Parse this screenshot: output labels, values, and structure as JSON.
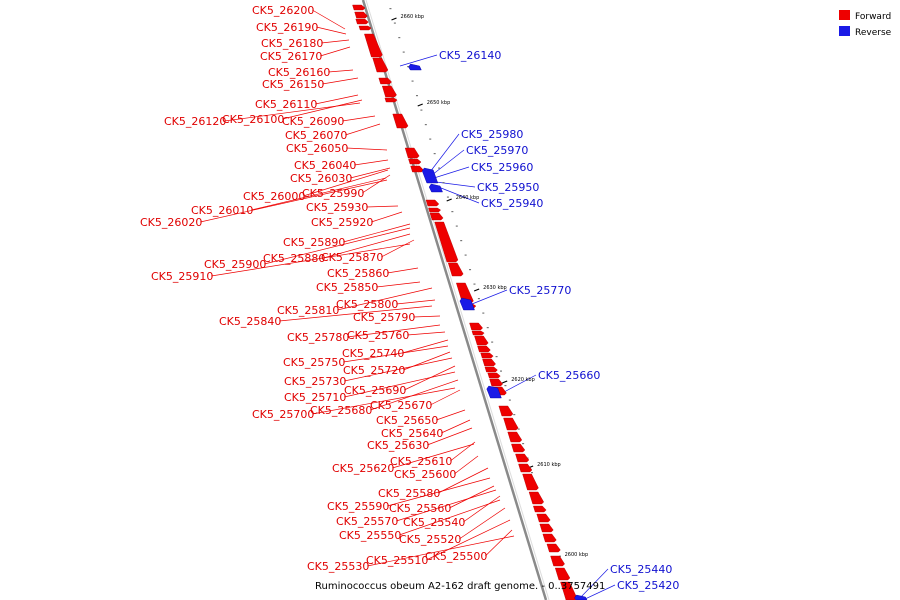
{
  "caption": "Ruminococcus obeum A2-162 draft genome. - 0..3757491",
  "colors": {
    "forward": "#ee0000",
    "reverse": "#1a1ae6",
    "axis": "#8a8a8a"
  },
  "legend": [
    {
      "name": "Forward",
      "color": "#ee0000"
    },
    {
      "name": "Reverse",
      "color": "#1a1ae6"
    }
  ],
  "ticks": [
    "2660 kbp",
    "2650 kbp",
    "2640 kbp",
    "2630 kbp",
    "2620 kbp",
    "2610 kbp",
    "2600 kbp"
  ],
  "genes_forward": [
    "CK5_26200",
    "CK5_26190",
    "CK5_26180",
    "CK5_26170",
    "CK5_26160",
    "CK5_26150",
    "CK5_26110",
    "CK5_26120",
    "CK5_26100",
    "CK5_26090",
    "CK5_26070",
    "CK5_26050",
    "CK5_26040",
    "CK5_26030",
    "CK5_26000",
    "CK5_25990",
    "CK5_26010",
    "CK5_25930",
    "CK5_26020",
    "CK5_25920",
    "CK5_25890",
    "CK5_25900",
    "CK5_25880",
    "CK5_25870",
    "CK5_25910",
    "CK5_25860",
    "CK5_25850",
    "CK5_25810",
    "CK5_25800",
    "CK5_25840",
    "CK5_25790",
    "CK5_25780",
    "CK5_25760",
    "CK5_25740",
    "CK5_25750",
    "CK5_25720",
    "CK5_25730",
    "CK5_25690",
    "CK5_25710",
    "CK5_25680",
    "CK5_25670",
    "CK5_25700",
    "CK5_25650",
    "CK5_25640",
    "CK5_25630",
    "CK5_25610",
    "CK5_25620",
    "CK5_25600",
    "CK5_25580",
    "CK5_25590",
    "CK5_25560",
    "CK5_25570",
    "CK5_25540",
    "CK5_25550",
    "CK5_25520",
    "CK5_25510",
    "CK5_25500",
    "CK5_25530"
  ],
  "genes_reverse": [
    "CK5_26140",
    "CK5_25980",
    "CK5_25970",
    "CK5_25960",
    "CK5_25950",
    "CK5_25940",
    "CK5_25770",
    "CK5_25660",
    "CK5_25440",
    "CK5_25420"
  ]
}
